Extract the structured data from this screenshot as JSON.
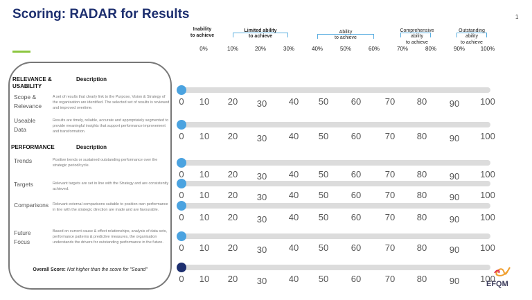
{
  "title": "Scoring: RADAR for Results",
  "page_number": "1",
  "scale_bands": [
    {
      "line1": "Inability",
      "line2": "to achieve",
      "bold": true
    },
    {
      "line1": "Limited ability",
      "line2": "to achieve",
      "bold": true
    },
    {
      "line1": "Ability",
      "line2": "to achieve",
      "bold": false
    },
    {
      "line1": "Comprehensive",
      "line2": "ability",
      "line3": "to achieve",
      "bold": false
    },
    {
      "line1": "Outstanding",
      "line2": "ability",
      "line3": "to achieve",
      "bold": false
    }
  ],
  "percent_labels": [
    "0%",
    "10%",
    "20%",
    "30%",
    "40%",
    "50%",
    "60%",
    "70%",
    "80%",
    "90%",
    "100%"
  ],
  "tick_labels": [
    "0",
    "10",
    "20",
    "30",
    "40",
    "50",
    "60",
    "70",
    "80",
    "90",
    "100"
  ],
  "sections": [
    {
      "heading": "RELEVANCE & USABILITY",
      "desc_heading": "Description"
    },
    {
      "heading": "PERFORMANCE",
      "desc_heading": "Description"
    }
  ],
  "criteria": [
    {
      "name": "Scope & Relevance",
      "description": "A set of results that clearly link to the Purpose, Vision & Strategy of the organisation are identified. The selected set of results is reviewed and improved overtime.",
      "score": 0
    },
    {
      "name": "Useable Data",
      "description": "Results are timely, reliable, accurate and appropriately segmented to provide meaningful insights that support performance improvement and transformation.",
      "score": 0
    },
    {
      "name": "Trends",
      "description": "Positive trends or sustained outstanding performance over the strategic period/cycle.",
      "score": 0
    },
    {
      "name": "Targets",
      "description": "Relevant targets are set in line with the Strategy and are consistently achieved.",
      "score": 0
    },
    {
      "name": "Comparisons",
      "description": "Relevant external comparisons suitable to position own performance in line with the strategic direction are made and are favourable.",
      "score": 0
    },
    {
      "name": "Future Focus",
      "description": "Based on current cause & effect relationships, analysis of data sets, performance patterns & predictive measures, the organisation understands the drivers for outstanding performance in the future.",
      "score": 0
    }
  ],
  "overall": {
    "label": "Overall Score:",
    "note": "Not higher than the score for \"Sound\"",
    "score": 0
  },
  "colors": {
    "title": "#1d2f6f",
    "slider_knob": "#4ba3e0",
    "overall_knob": "#1d2f6f",
    "track": "#dcdcdc",
    "accent": "#8cc63f"
  },
  "logo": {
    "text": "EFQM"
  }
}
